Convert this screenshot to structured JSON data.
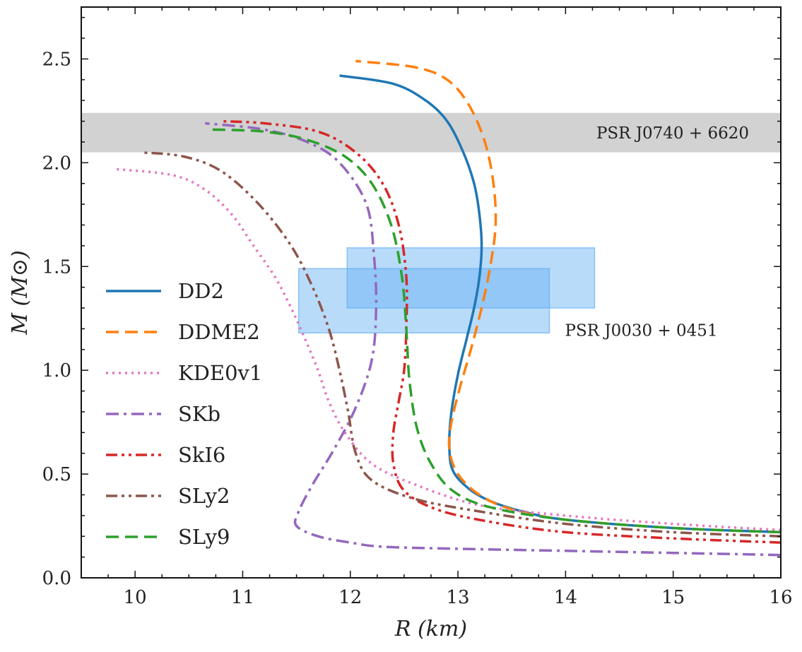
{
  "chart_data": {
    "type": "line",
    "xlabel": "R (km)",
    "ylabel": "M (M⊙)",
    "xlim": [
      9.5,
      16
    ],
    "ylim": [
      0,
      2.75
    ],
    "x_ticks": [
      "10",
      "11",
      "12",
      "13",
      "14",
      "15",
      "16"
    ],
    "y_ticks": [
      "0.0",
      "0.5",
      "1.0",
      "1.5",
      "2.0",
      "2.5"
    ],
    "grid": false,
    "legend_position": "left",
    "bands": [
      {
        "label": "PSR J0740 + 6620",
        "x_range": [
          9.5,
          16
        ],
        "y_range": [
          2.05,
          2.24
        ],
        "color": "#b4b4b4"
      }
    ],
    "boxes": [
      {
        "label": "PSR J0030 + 0451",
        "x_range": [
          11.52,
          13.85
        ],
        "y_range": [
          1.18,
          1.49
        ],
        "color": "#64b0f4"
      },
      {
        "x_range": [
          11.97,
          14.27
        ],
        "y_range": [
          1.3,
          1.59
        ],
        "color": "#64b0f4"
      }
    ],
    "series": [
      {
        "name": "DD2",
        "color": "#1f77b4",
        "dash": "solid",
        "points": [
          [
            16.0,
            0.22
          ],
          [
            15.0,
            0.24
          ],
          [
            14.0,
            0.28
          ],
          [
            13.6,
            0.32
          ],
          [
            13.3,
            0.37
          ],
          [
            13.1,
            0.43
          ],
          [
            12.95,
            0.52
          ],
          [
            12.92,
            0.65
          ],
          [
            12.94,
            0.8
          ],
          [
            13.0,
            0.98
          ],
          [
            13.08,
            1.15
          ],
          [
            13.15,
            1.3
          ],
          [
            13.2,
            1.45
          ],
          [
            13.22,
            1.6
          ],
          [
            13.2,
            1.75
          ],
          [
            13.15,
            1.9
          ],
          [
            13.05,
            2.05
          ],
          [
            12.9,
            2.2
          ],
          [
            12.7,
            2.3
          ],
          [
            12.4,
            2.38
          ],
          [
            11.9,
            2.42
          ]
        ]
      },
      {
        "name": "DDME2",
        "color": "#ff7f0e",
        "dash": "dashed",
        "points": [
          [
            16.0,
            0.22
          ],
          [
            15.0,
            0.24
          ],
          [
            14.0,
            0.28
          ],
          [
            13.5,
            0.33
          ],
          [
            13.2,
            0.4
          ],
          [
            13.0,
            0.5
          ],
          [
            12.92,
            0.62
          ],
          [
            12.94,
            0.75
          ],
          [
            13.02,
            0.92
          ],
          [
            13.12,
            1.1
          ],
          [
            13.22,
            1.3
          ],
          [
            13.3,
            1.5
          ],
          [
            13.35,
            1.7
          ],
          [
            13.33,
            1.9
          ],
          [
            13.25,
            2.1
          ],
          [
            13.1,
            2.28
          ],
          [
            12.9,
            2.4
          ],
          [
            12.6,
            2.46
          ],
          [
            12.05,
            2.49
          ]
        ]
      },
      {
        "name": "KDE0v1",
        "color": "#e377c2",
        "dash": "dotted",
        "points": [
          [
            16.0,
            0.23
          ],
          [
            15.0,
            0.26
          ],
          [
            14.0,
            0.3
          ],
          [
            13.2,
            0.35
          ],
          [
            12.6,
            0.45
          ],
          [
            12.2,
            0.55
          ],
          [
            11.95,
            0.7
          ],
          [
            11.8,
            0.85
          ],
          [
            11.7,
            1.0
          ],
          [
            11.58,
            1.15
          ],
          [
            11.45,
            1.3
          ],
          [
            11.3,
            1.45
          ],
          [
            11.1,
            1.6
          ],
          [
            10.9,
            1.75
          ],
          [
            10.65,
            1.87
          ],
          [
            10.35,
            1.94
          ],
          [
            9.8,
            1.97
          ]
        ]
      },
      {
        "name": "SKb",
        "color": "#9467bd",
        "dash": "dashdot",
        "points": [
          [
            16.0,
            0.11
          ],
          [
            15.0,
            0.12
          ],
          [
            14.0,
            0.13
          ],
          [
            13.0,
            0.14
          ],
          [
            12.3,
            0.15
          ],
          [
            12.0,
            0.17
          ],
          [
            11.7,
            0.2
          ],
          [
            11.5,
            0.25
          ],
          [
            11.52,
            0.32
          ],
          [
            11.65,
            0.45
          ],
          [
            11.85,
            0.62
          ],
          [
            12.05,
            0.82
          ],
          [
            12.2,
            1.05
          ],
          [
            12.24,
            1.3
          ],
          [
            12.22,
            1.55
          ],
          [
            12.15,
            1.8
          ],
          [
            11.9,
            2.0
          ],
          [
            11.6,
            2.1
          ],
          [
            11.2,
            2.16
          ],
          [
            10.65,
            2.19
          ]
        ]
      },
      {
        "name": "SkI6",
        "color": "#d62728",
        "dash": "dashdotdot",
        "points": [
          [
            16.0,
            0.17
          ],
          [
            15.0,
            0.19
          ],
          [
            14.0,
            0.22
          ],
          [
            13.3,
            0.27
          ],
          [
            12.8,
            0.33
          ],
          [
            12.5,
            0.42
          ],
          [
            12.4,
            0.55
          ],
          [
            12.4,
            0.7
          ],
          [
            12.45,
            0.85
          ],
          [
            12.5,
            1.0
          ],
          [
            12.52,
            1.2
          ],
          [
            12.52,
            1.45
          ],
          [
            12.45,
            1.7
          ],
          [
            12.3,
            1.9
          ],
          [
            12.05,
            2.05
          ],
          [
            11.7,
            2.15
          ],
          [
            11.2,
            2.19
          ],
          [
            10.8,
            2.2
          ]
        ]
      },
      {
        "name": "SLy2",
        "color": "#8c564b",
        "dash": "dashdotdot",
        "points": [
          [
            16.0,
            0.2
          ],
          [
            15.0,
            0.22
          ],
          [
            14.0,
            0.26
          ],
          [
            13.2,
            0.32
          ],
          [
            12.6,
            0.38
          ],
          [
            12.2,
            0.47
          ],
          [
            12.05,
            0.6
          ],
          [
            11.98,
            0.8
          ],
          [
            11.9,
            1.0
          ],
          [
            11.8,
            1.2
          ],
          [
            11.65,
            1.4
          ],
          [
            11.45,
            1.6
          ],
          [
            11.15,
            1.8
          ],
          [
            10.8,
            1.96
          ],
          [
            10.45,
            2.03
          ],
          [
            10.05,
            2.05
          ]
        ]
      },
      {
        "name": "SLy9",
        "color": "#2ca02c",
        "dash": "dashed",
        "points": [
          [
            16.0,
            0.22
          ],
          [
            15.0,
            0.24
          ],
          [
            14.0,
            0.28
          ],
          [
            13.3,
            0.34
          ],
          [
            12.95,
            0.42
          ],
          [
            12.75,
            0.55
          ],
          [
            12.62,
            0.72
          ],
          [
            12.55,
            0.95
          ],
          [
            12.52,
            1.2
          ],
          [
            12.48,
            1.45
          ],
          [
            12.38,
            1.7
          ],
          [
            12.2,
            1.9
          ],
          [
            11.95,
            2.03
          ],
          [
            11.6,
            2.11
          ],
          [
            11.2,
            2.15
          ],
          [
            10.7,
            2.16
          ]
        ]
      }
    ]
  }
}
